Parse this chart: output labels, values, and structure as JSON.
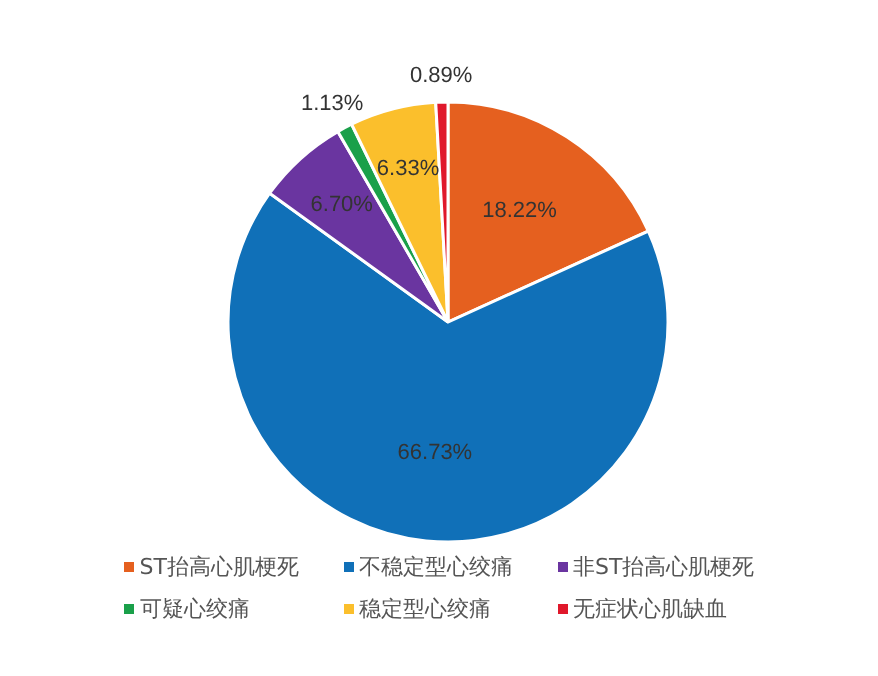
{
  "chart_data": {
    "type": "pie",
    "categories": [
      "ST抬高心肌梗死",
      "不稳定型心绞痛",
      "非ST抬高心肌梗死",
      "可疑心绞痛",
      "稳定型心绞痛",
      "无症状心肌缺血"
    ],
    "values": [
      18.22,
      66.73,
      6.7,
      1.13,
      6.33,
      0.89
    ],
    "colors": [
      "#e5601f",
      "#1070b8",
      "#6a35a0",
      "#1aa04a",
      "#fbbf2c",
      "#e0182b"
    ],
    "value_labels": [
      "18.22%",
      "66.73%",
      "6.70%",
      "1.13%",
      "6.33%",
      "0.89%"
    ],
    "legend": "bottom"
  }
}
